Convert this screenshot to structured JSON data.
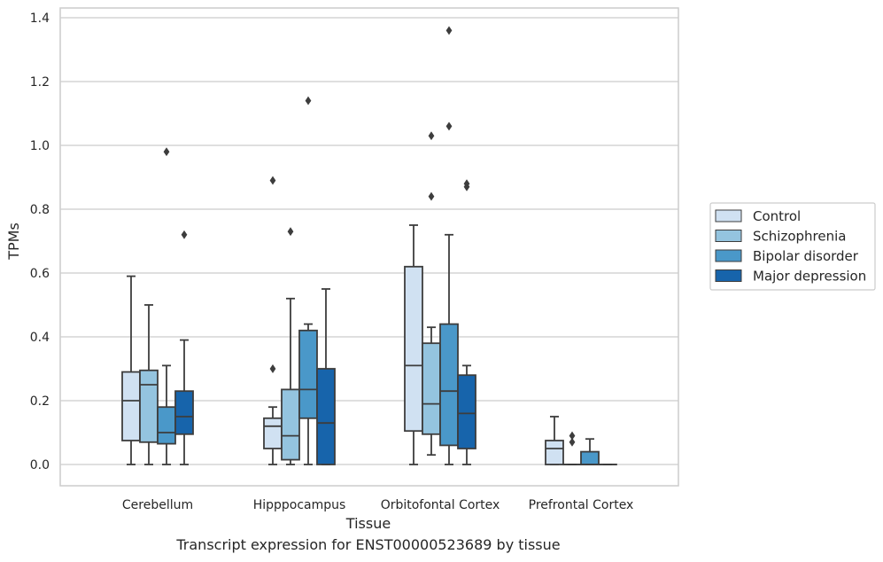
{
  "chart_data": {
    "type": "boxplot",
    "xlabel": "Tissue",
    "ylabel": "TPMs",
    "ylim": [
      -0.065,
      1.435
    ],
    "yticks": [
      0.0,
      0.2,
      0.4,
      0.6,
      0.8,
      1.0,
      1.2,
      1.4
    ],
    "ytick_labels": [
      "0.0",
      "0.2",
      "0.4",
      "0.6",
      "0.8",
      "1.0",
      "1.2",
      "1.4"
    ],
    "grid": "horizontal",
    "legend_placement": "right",
    "categories": [
      "Cerebellum",
      "Hipppocampus",
      "Orbitofontal Cortex",
      "Prefrontal Cortex"
    ],
    "series": [
      {
        "name": "Control",
        "color": "#d0e1f2",
        "boxes": [
          {
            "whislo": 0.0,
            "q1": 0.075,
            "med": 0.2,
            "q3": 0.29,
            "whishi": 0.59,
            "fliers": []
          },
          {
            "whislo": 0.0,
            "q1": 0.05,
            "med": 0.12,
            "q3": 0.145,
            "whishi": 0.18,
            "fliers": [
              0.3,
              0.89
            ]
          },
          {
            "whislo": 0.0,
            "q1": 0.105,
            "med": 0.31,
            "q3": 0.62,
            "whishi": 0.75,
            "fliers": []
          },
          {
            "whislo": 0.0,
            "q1": 0.0,
            "med": 0.05,
            "q3": 0.075,
            "whishi": 0.15,
            "fliers": []
          }
        ]
      },
      {
        "name": "Schizophrenia",
        "color": "#94c4df",
        "boxes": [
          {
            "whislo": 0.0,
            "q1": 0.07,
            "med": 0.25,
            "q3": 0.295,
            "whishi": 0.5,
            "fliers": []
          },
          {
            "whislo": 0.0,
            "q1": 0.015,
            "med": 0.09,
            "q3": 0.235,
            "whishi": 0.52,
            "fliers": [
              0.73
            ]
          },
          {
            "whislo": 0.03,
            "q1": 0.095,
            "med": 0.19,
            "q3": 0.38,
            "whishi": 0.43,
            "fliers": [
              0.84,
              1.03
            ]
          },
          {
            "whislo": 0.0,
            "q1": 0.0,
            "med": 0.0,
            "q3": 0.0,
            "whishi": 0.0,
            "fliers": [
              0.07,
              0.09
            ]
          }
        ]
      },
      {
        "name": "Bipolar disorder",
        "color": "#4a98c9",
        "boxes": [
          {
            "whislo": 0.0,
            "q1": 0.065,
            "med": 0.1,
            "q3": 0.18,
            "whishi": 0.31,
            "fliers": [
              0.98
            ]
          },
          {
            "whislo": 0.0,
            "q1": 0.145,
            "med": 0.235,
            "q3": 0.42,
            "whishi": 0.44,
            "fliers": [
              1.14
            ]
          },
          {
            "whislo": 0.0,
            "q1": 0.06,
            "med": 0.23,
            "q3": 0.44,
            "whishi": 0.72,
            "fliers": [
              1.06,
              1.36
            ]
          },
          {
            "whislo": 0.0,
            "q1": 0.0,
            "med": 0.0,
            "q3": 0.04,
            "whishi": 0.08,
            "fliers": []
          }
        ]
      },
      {
        "name": "Major depression",
        "color": "#1764ab",
        "boxes": [
          {
            "whislo": 0.0,
            "q1": 0.095,
            "med": 0.15,
            "q3": 0.23,
            "whishi": 0.39,
            "fliers": [
              0.72
            ]
          },
          {
            "whislo": 0.0,
            "q1": 0.0,
            "med": 0.13,
            "q3": 0.3,
            "whishi": 0.55,
            "fliers": []
          },
          {
            "whislo": 0.0,
            "q1": 0.05,
            "med": 0.16,
            "q3": 0.28,
            "whishi": 0.31,
            "fliers": [
              0.87,
              0.88
            ]
          },
          {
            "whislo": 0.0,
            "q1": 0.0,
            "med": 0.0,
            "q3": 0.0,
            "whishi": 0.0,
            "fliers": []
          }
        ]
      }
    ],
    "caption": "Transcript expression for ENST00000523689 by tissue"
  }
}
